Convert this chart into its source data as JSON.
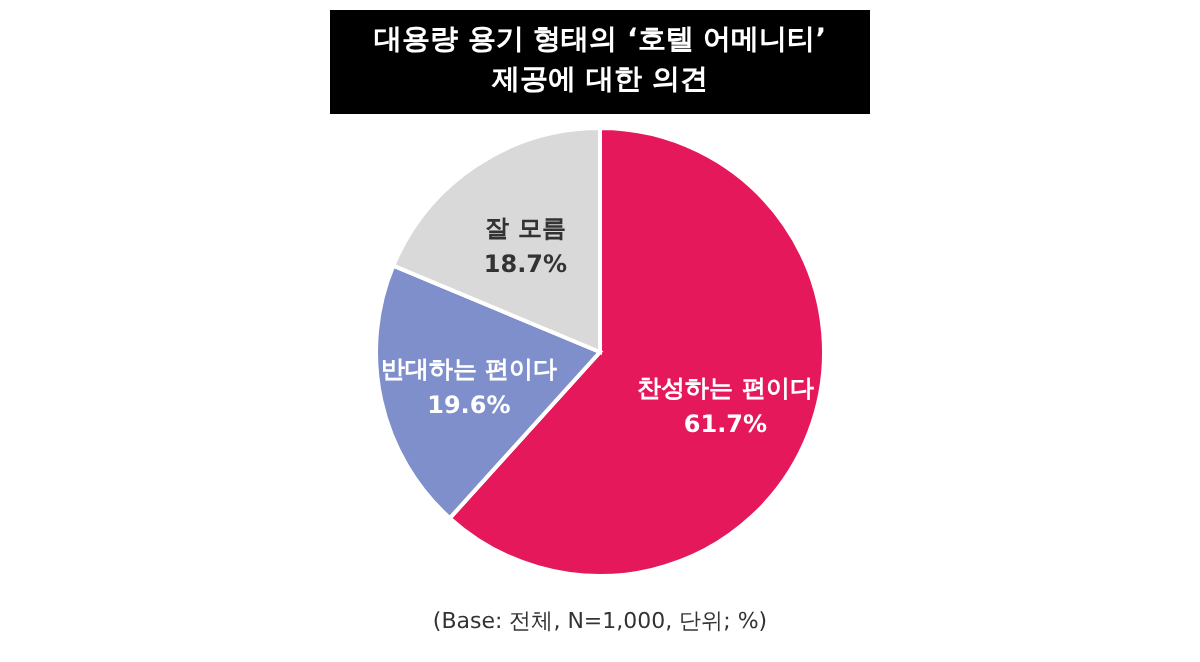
{
  "chart_data": {
    "type": "pie",
    "title": "대용량 용기 형태의 ‘호텔 어메니티’\n제공에 대한 의견",
    "categories": [
      "찬성하는 편이다",
      "반대하는 편이다",
      "잘 모름"
    ],
    "values": [
      61.7,
      19.6,
      18.7
    ],
    "colors": [
      "#e5185c",
      "#7f8fcc",
      "#d9d9d9"
    ],
    "value_labels": [
      "61.7%",
      "19.6%",
      "18.7%"
    ],
    "annotations": [
      "(Base: 전체, N=1,000, 단위; %)"
    ]
  }
}
